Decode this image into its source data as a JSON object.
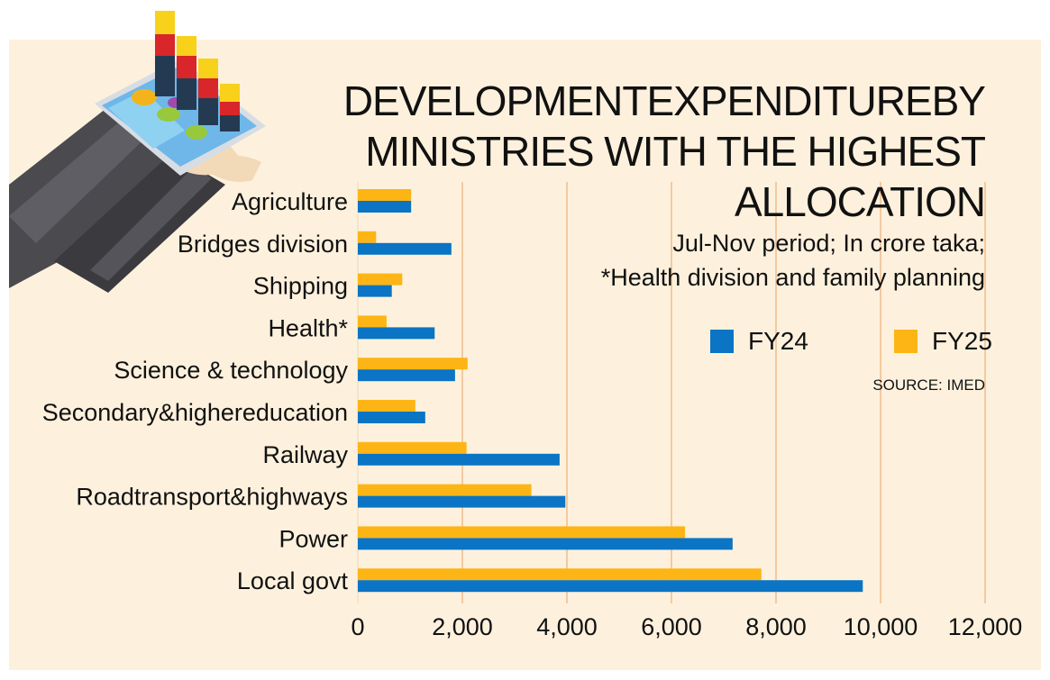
{
  "colors": {
    "background": "#fdf1dd",
    "fy24": "#0b74c4",
    "fy25": "#fdb515",
    "grid": "#f3c9a0",
    "text": "#111111"
  },
  "header": {
    "title_line1": "DEVELOPMENTEXPENDITUREBY",
    "title_line2": "MINISTRIES WITH THE HIGHEST",
    "title_line3": "ALLOCATION",
    "subtitle_line1": "Jul-Nov period; In crore taka;",
    "subtitle_line2": "*Health division and family planning",
    "source": "SOURCE: IMED"
  },
  "legend": {
    "fy24": "FY24",
    "fy25": "FY25"
  },
  "illustration": {
    "icon": "hand-holding-tablet-chart-icon"
  },
  "chart_data": {
    "type": "bar",
    "orientation": "horizontal",
    "title": "DEVELOPMENTEXPENDITUREBY MINISTRIES WITH THE HIGHEST ALLOCATION",
    "subtitle": "Jul-Nov period; In crore taka; *Health division and family planning",
    "unit": "crore taka",
    "categories": [
      "Agriculture",
      "Bridges division",
      "Shipping",
      "Health*",
      "Science & technology",
      "Secondary&highereducation",
      "Railway",
      "Roadtransport&highways",
      "Power",
      "Local govt"
    ],
    "series": [
      {
        "name": "FY25",
        "color": "#fdb515",
        "values": [
          1020,
          350,
          850,
          550,
          2100,
          1100,
          2080,
          3320,
          6260,
          7720
        ]
      },
      {
        "name": "FY24",
        "color": "#0b74c4",
        "values": [
          1020,
          1790,
          650,
          1470,
          1860,
          1290,
          3860,
          3970,
          7170,
          9660
        ]
      }
    ],
    "xlim": [
      0,
      12000
    ],
    "xticks": [
      0,
      2000,
      4000,
      6000,
      8000,
      10000,
      12000
    ],
    "xtick_labels": [
      "0",
      "2,000",
      "4,000",
      "6,000",
      "8,000",
      "10,000",
      "12,000"
    ],
    "grid": true,
    "legend": "right",
    "source": "SOURCE: IMED"
  }
}
